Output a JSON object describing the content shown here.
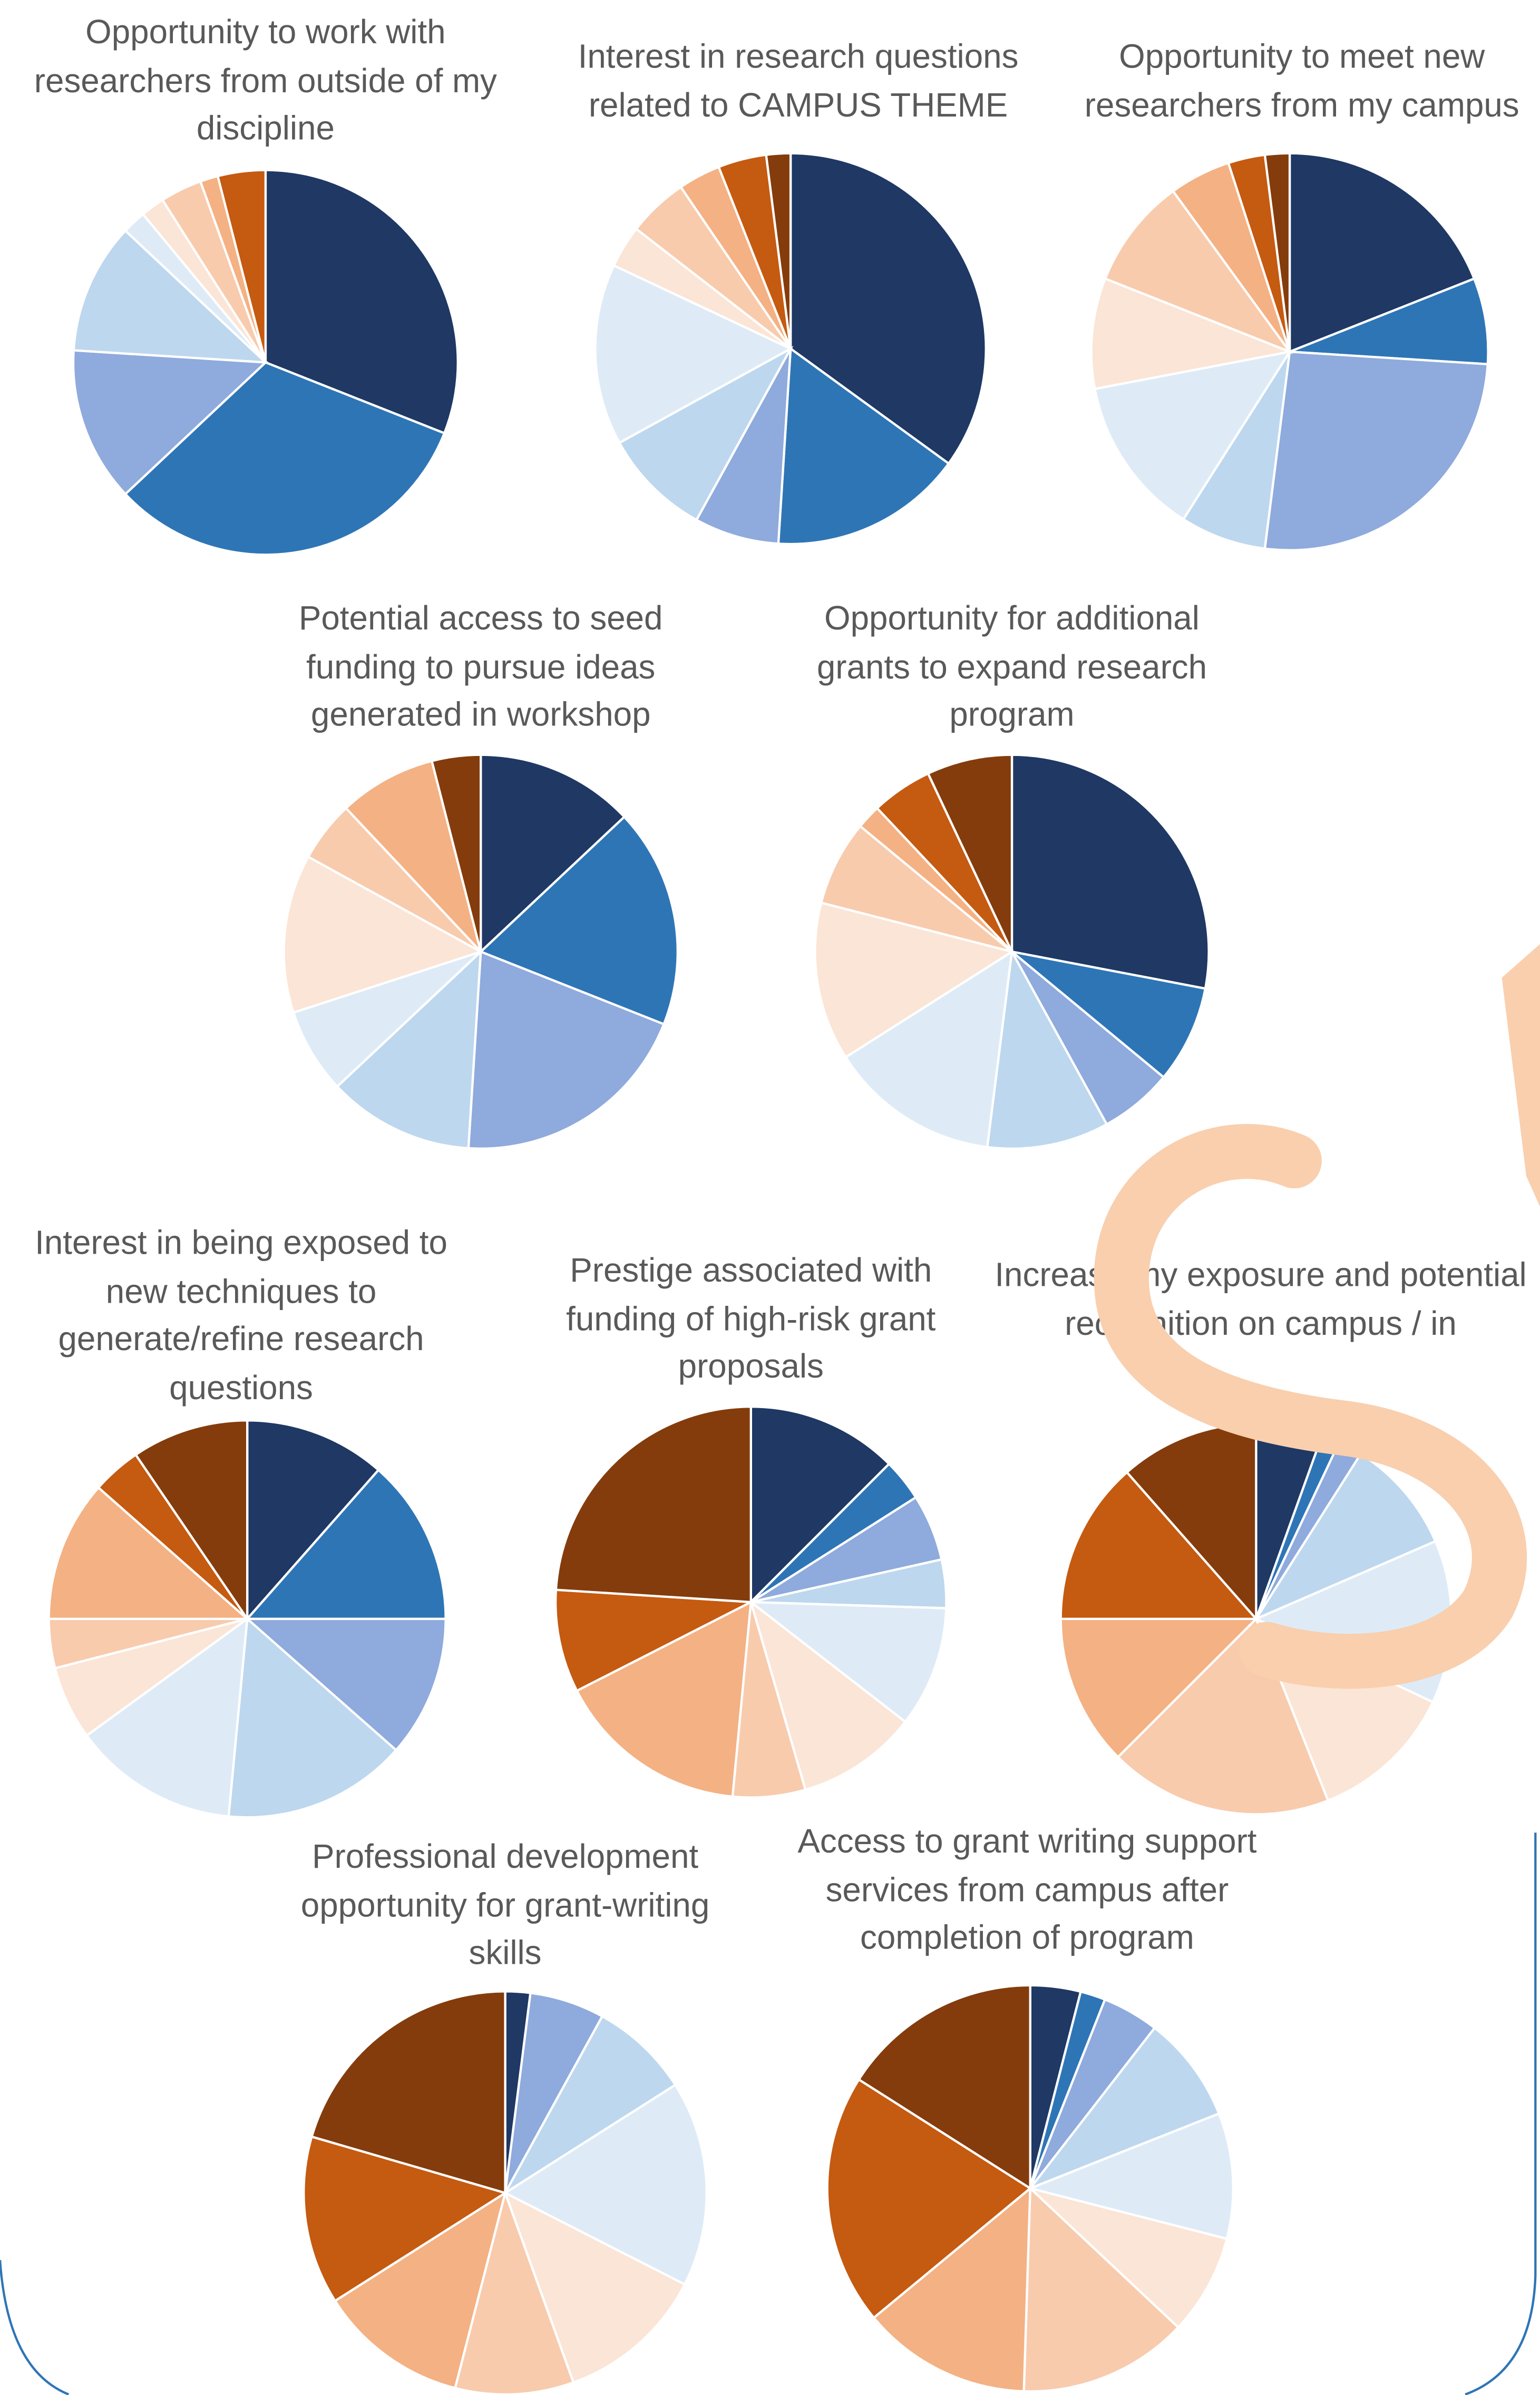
{
  "chart_data": [
    {
      "type": "pie",
      "title": "Opportunity to work with researchers from outside of my discipline",
      "values": [
        31,
        32,
        13,
        11,
        2,
        2,
        3.5,
        1.5,
        4,
        0
      ],
      "colors": [
        "#1f3864",
        "#2e75b6",
        "#8faadc",
        "#bdd7ee",
        "#deebf7",
        "#fbe5d6",
        "#f8cbad",
        "#f4b183",
        "#c55a11",
        "#843c0c"
      ]
    },
    {
      "type": "pie",
      "title": "Interest in research questions related to CAMPUS THEME",
      "values": [
        35,
        16,
        7,
        9,
        15,
        3.5,
        5,
        3.5,
        4,
        2
      ],
      "colors": [
        "#1f3864",
        "#2e75b6",
        "#8faadc",
        "#bdd7ee",
        "#deebf7",
        "#fbe5d6",
        "#f8cbad",
        "#f4b183",
        "#c55a11",
        "#843c0c"
      ]
    },
    {
      "type": "pie",
      "title": "Opportunity to meet new researchers from my campus",
      "values": [
        19,
        7,
        26,
        7,
        13,
        9,
        9,
        5,
        3,
        2
      ],
      "colors": [
        "#1f3864",
        "#2e75b6",
        "#8faadc",
        "#bdd7ee",
        "#deebf7",
        "#fbe5d6",
        "#f8cbad",
        "#f4b183",
        "#c55a11",
        "#843c0c"
      ]
    },
    {
      "type": "pie",
      "title": "Potential access to seed funding to pursue ideas generated in workshop",
      "values": [
        13,
        18,
        20,
        12,
        7,
        13,
        5,
        8,
        0,
        4
      ],
      "colors": [
        "#1f3864",
        "#2e75b6",
        "#8faadc",
        "#bdd7ee",
        "#deebf7",
        "#fbe5d6",
        "#f8cbad",
        "#f4b183",
        "#c55a11",
        "#843c0c"
      ]
    },
    {
      "type": "pie",
      "title": "Opportunity for additional grants to expand research program",
      "values": [
        28,
        8,
        6,
        10,
        14,
        13,
        7,
        2,
        5,
        7
      ],
      "colors": [
        "#1f3864",
        "#2e75b6",
        "#8faadc",
        "#bdd7ee",
        "#deebf7",
        "#fbe5d6",
        "#f8cbad",
        "#f4b183",
        "#c55a11",
        "#843c0c"
      ]
    },
    {
      "type": "pie",
      "title": "Interest in being exposed to new techniques to generate/refine research questions",
      "values": [
        11.5,
        13.5,
        11.5,
        15,
        13.5,
        6,
        4,
        11.5,
        4,
        9.5
      ],
      "colors": [
        "#1f3864",
        "#2e75b6",
        "#8faadc",
        "#bdd7ee",
        "#deebf7",
        "#fbe5d6",
        "#f8cbad",
        "#f4b183",
        "#c55a11",
        "#843c0c"
      ]
    },
    {
      "type": "pie",
      "title": "Prestige associated with funding of high-risk grant proposals",
      "values": [
        12.5,
        3.5,
        5.5,
        4,
        10,
        10,
        6,
        16,
        8.5,
        24
      ],
      "colors": [
        "#1f3864",
        "#2e75b6",
        "#8faadc",
        "#bdd7ee",
        "#deebf7",
        "#fbe5d6",
        "#f8cbad",
        "#f4b183",
        "#c55a11",
        "#843c0c"
      ]
    },
    {
      "type": "pie",
      "title": "Increase my exposure and potential recognition on campus / in",
      "values": [
        5.5,
        1.5,
        2,
        9.5,
        13.5,
        12,
        18.5,
        12.5,
        13.5,
        11.5
      ],
      "colors": [
        "#1f3864",
        "#2e75b6",
        "#8faadc",
        "#bdd7ee",
        "#deebf7",
        "#fbe5d6",
        "#f8cbad",
        "#f4b183",
        "#c55a11",
        "#843c0c"
      ]
    },
    {
      "type": "pie",
      "title": "Professional development opportunity for grant-writing skills",
      "values": [
        2,
        0,
        6,
        8,
        16.5,
        12,
        9.5,
        12,
        13.5,
        20.5
      ],
      "colors": [
        "#1f3864",
        "#2e75b6",
        "#8faadc",
        "#bdd7ee",
        "#deebf7",
        "#fbe5d6",
        "#f8cbad",
        "#f4b183",
        "#c55a11",
        "#843c0c"
      ]
    },
    {
      "type": "pie",
      "title": "Access to grant writing support services from campus after completion of program",
      "values": [
        4,
        2,
        4.5,
        8.5,
        10,
        8,
        13.5,
        13.5,
        20,
        16
      ],
      "colors": [
        "#1f3864",
        "#2e75b6",
        "#8faadc",
        "#bdd7ee",
        "#deebf7",
        "#fbe5d6",
        "#f8cbad",
        "#f4b183",
        "#c55a11",
        "#843c0c"
      ]
    }
  ]
}
